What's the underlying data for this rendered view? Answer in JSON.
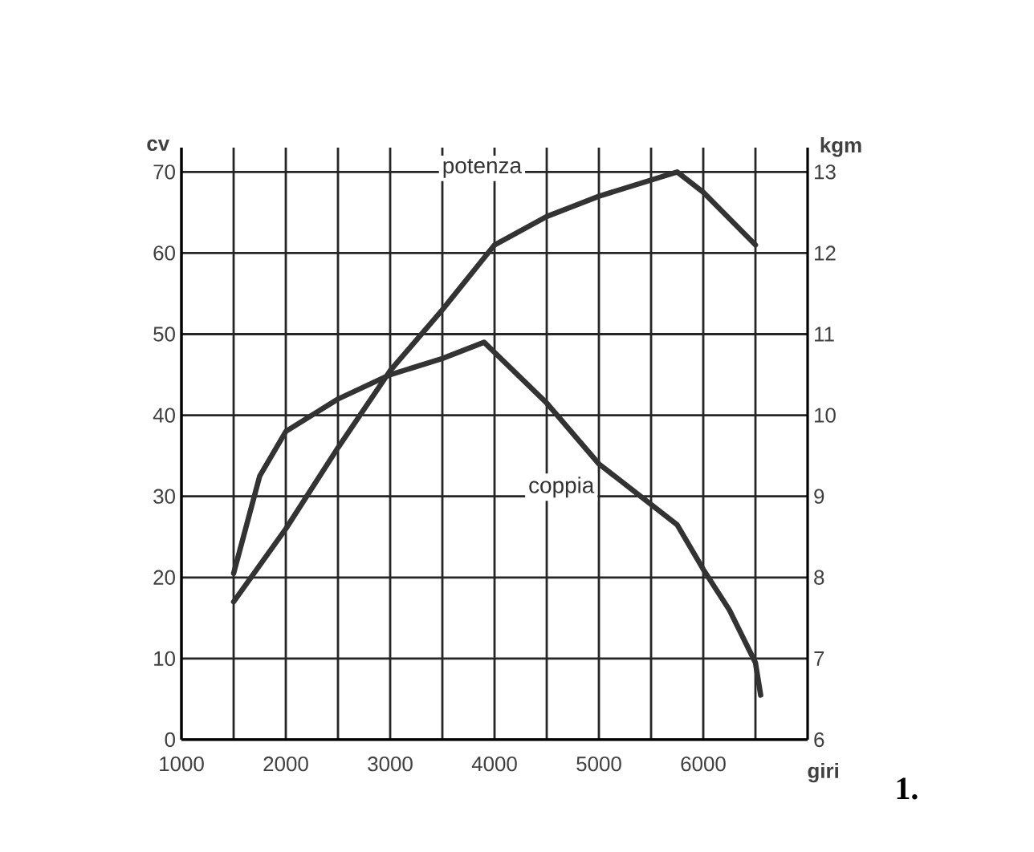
{
  "chart_data": {
    "type": "line",
    "xlabel": "giri",
    "ylabel": "cv",
    "y2label": "kgm",
    "xlim": [
      1000,
      7000
    ],
    "ylim": [
      0,
      73
    ],
    "y2lim": [
      6,
      13.3
    ],
    "xticks": [
      1000,
      {
        "value": 1500,
        "label": null
      },
      2000,
      {
        "value": 2500,
        "label": null
      },
      3000,
      {
        "value": 3500,
        "label": null
      },
      4000,
      {
        "value": 4500,
        "label": null
      },
      5000,
      {
        "value": 5500,
        "label": null
      },
      6000,
      {
        "value": 6500,
        "label": null
      }
    ],
    "yticks": [
      0,
      10,
      20,
      30,
      40,
      50,
      60,
      70
    ],
    "y2ticks": [
      6,
      7,
      8,
      9,
      10,
      11,
      12,
      13
    ],
    "grid": true,
    "line_style": "solid",
    "series": [
      {
        "name": "potenza",
        "color": "#333333",
        "x": [
          1500,
          2000,
          2500,
          3000,
          3500,
          4000,
          4500,
          5000,
          5500,
          5750,
          6000,
          6500
        ],
        "values": [
          17,
          26,
          36,
          45.5,
          53,
          61,
          64.5,
          67,
          69,
          70,
          67.5,
          61
        ]
      },
      {
        "name": "coppia",
        "color": "#333333",
        "axis": "y2",
        "x": [
          1500,
          1750,
          2000,
          2500,
          3000,
          3500,
          3900,
          4500,
          5000,
          5500,
          5750,
          6000,
          6250,
          6500,
          6550
        ],
        "values": [
          8.05,
          9.25,
          9.8,
          10.2,
          10.5,
          10.7,
          10.9,
          10.15,
          9.4,
          8.9,
          8.65,
          8.1,
          7.6,
          6.95,
          6.55
        ]
      }
    ],
    "annotations": [
      "1."
    ]
  }
}
